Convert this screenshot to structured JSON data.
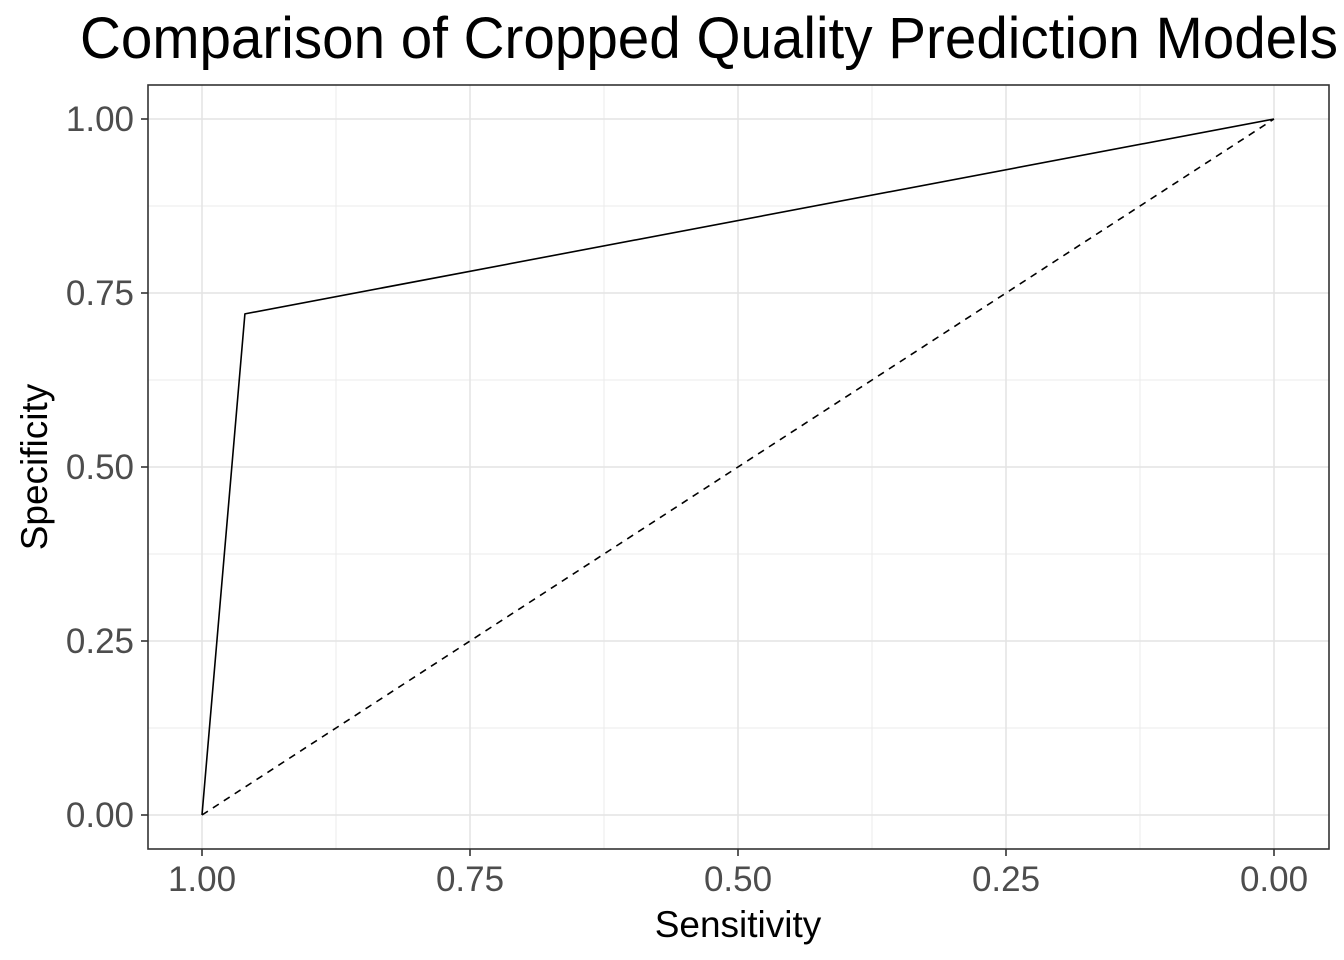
{
  "chart_data": {
    "type": "line",
    "title": "Comparison of Cropped Quality Prediction Models",
    "xlabel": "Sensitivity",
    "ylabel": "Specificity",
    "x_reversed": true,
    "xlim": [
      1.0,
      0.0
    ],
    "ylim": [
      0.0,
      1.0
    ],
    "x_ticks": [
      "1.00",
      "0.75",
      "0.50",
      "0.25",
      "0.00"
    ],
    "y_ticks": [
      "0.00",
      "0.25",
      "0.50",
      "0.75",
      "1.00"
    ],
    "grid": true,
    "series": [
      {
        "style": "solid",
        "color": "#000000",
        "x": [
          1.0,
          0.96,
          0.0
        ],
        "y": [
          0.0,
          0.72,
          1.0
        ]
      },
      {
        "style": "dashed",
        "color": "#000000",
        "x": [
          1.0,
          0.0
        ],
        "y": [
          0.0,
          1.0
        ]
      }
    ]
  }
}
